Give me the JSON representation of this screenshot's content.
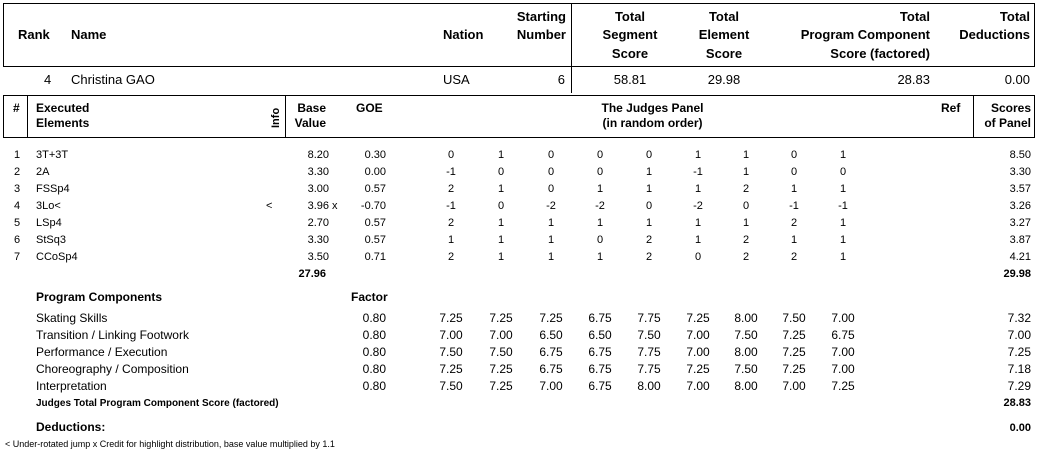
{
  "header": {
    "rank": "Rank",
    "name": "Name",
    "nation": "Nation",
    "starting_1": "Starting",
    "starting_2": "Number",
    "tss_1": "Total",
    "tss_2": "Segment",
    "tss_3": "Score",
    "tes_1": "Total",
    "tes_2": "Element",
    "tes_3": "Score",
    "pcs_1": "Total",
    "pcs_2": "Program Component",
    "pcs_3": "Score (factored)",
    "ded_1": "Total",
    "ded_2": "Deductions"
  },
  "skater": {
    "rank": "4",
    "name": "Christina GAO",
    "nation": "USA",
    "start": "6",
    "tss": "58.81",
    "tes": "29.98",
    "pcs": "28.83",
    "ded": "0.00"
  },
  "elements_header": {
    "num": "#",
    "exec_1": "Executed",
    "exec_2": "Elements",
    "info": "Info",
    "base_1": "Base",
    "base_2": "Value",
    "goe": "GOE",
    "panel_1": "The Judges Panel",
    "panel_2": "(in random order)",
    "ref": "Ref",
    "scores_1": "Scores",
    "scores_2": "of Panel"
  },
  "elements": [
    {
      "num": "1",
      "name": "3T+3T",
      "info": "",
      "base": "8.20",
      "x": "",
      "goe": "0.30",
      "judges": [
        "0",
        "1",
        "0",
        "0",
        "0",
        "1",
        "1",
        "0",
        "1"
      ],
      "score": "8.50"
    },
    {
      "num": "2",
      "name": "2A",
      "info": "",
      "base": "3.30",
      "x": "",
      "goe": "0.00",
      "judges": [
        "-1",
        "0",
        "0",
        "0",
        "1",
        "-1",
        "1",
        "0",
        "0"
      ],
      "score": "3.30"
    },
    {
      "num": "3",
      "name": "FSSp4",
      "info": "",
      "base": "3.00",
      "x": "",
      "goe": "0.57",
      "judges": [
        "2",
        "1",
        "0",
        "1",
        "1",
        "1",
        "2",
        "1",
        "1"
      ],
      "score": "3.57"
    },
    {
      "num": "4",
      "name": "3Lo<",
      "info": "<",
      "base": "3.96",
      "x": "x",
      "goe": "-0.70",
      "judges": [
        "-1",
        "0",
        "-2",
        "-2",
        "0",
        "-2",
        "0",
        "-1",
        "-1"
      ],
      "score": "3.26"
    },
    {
      "num": "5",
      "name": "LSp4",
      "info": "",
      "base": "2.70",
      "x": "",
      "goe": "0.57",
      "judges": [
        "2",
        "1",
        "1",
        "1",
        "1",
        "1",
        "1",
        "2",
        "1"
      ],
      "score": "3.27"
    },
    {
      "num": "6",
      "name": "StSq3",
      "info": "",
      "base": "3.30",
      "x": "",
      "goe": "0.57",
      "judges": [
        "1",
        "1",
        "1",
        "0",
        "2",
        "1",
        "2",
        "1",
        "1"
      ],
      "score": "3.87"
    },
    {
      "num": "7",
      "name": "CCoSp4",
      "info": "",
      "base": "3.50",
      "x": "",
      "goe": "0.71",
      "judges": [
        "2",
        "1",
        "1",
        "1",
        "2",
        "0",
        "2",
        "2",
        "1"
      ],
      "score": "4.21"
    }
  ],
  "elements_total_base": "27.96",
  "elements_total_score": "29.98",
  "components_header": {
    "label": "Program Components",
    "factor": "Factor"
  },
  "components": [
    {
      "name": "Skating Skills",
      "factor": "0.80",
      "judges": [
        "7.25",
        "7.25",
        "7.25",
        "6.75",
        "7.75",
        "7.25",
        "8.00",
        "7.50",
        "7.00"
      ],
      "score": "7.32"
    },
    {
      "name": "Transition / Linking Footwork",
      "factor": "0.80",
      "judges": [
        "7.00",
        "7.00",
        "6.50",
        "6.50",
        "7.50",
        "7.00",
        "7.50",
        "7.25",
        "6.75"
      ],
      "score": "7.00"
    },
    {
      "name": "Performance / Execution",
      "factor": "0.80",
      "judges": [
        "7.50",
        "7.50",
        "6.75",
        "6.75",
        "7.75",
        "7.00",
        "8.00",
        "7.25",
        "7.00"
      ],
      "score": "7.25"
    },
    {
      "name": "Choreography / Composition",
      "factor": "0.80",
      "judges": [
        "7.25",
        "7.25",
        "6.75",
        "6.75",
        "7.75",
        "7.25",
        "7.50",
        "7.25",
        "7.00"
      ],
      "score": "7.18"
    },
    {
      "name": "Interpretation",
      "factor": "0.80",
      "judges": [
        "7.50",
        "7.25",
        "7.00",
        "6.75",
        "8.00",
        "7.00",
        "8.00",
        "7.00",
        "7.25"
      ],
      "score": "7.29"
    }
  ],
  "pcs_total_label": "Judges Total Program Component Score (factored)",
  "pcs_total": "28.83",
  "deductions_label": "Deductions:",
  "deductions_value": "0.00",
  "footnote": "<  Under-rotated jump   x  Credit for highlight distribution, base value multiplied by 1.1"
}
